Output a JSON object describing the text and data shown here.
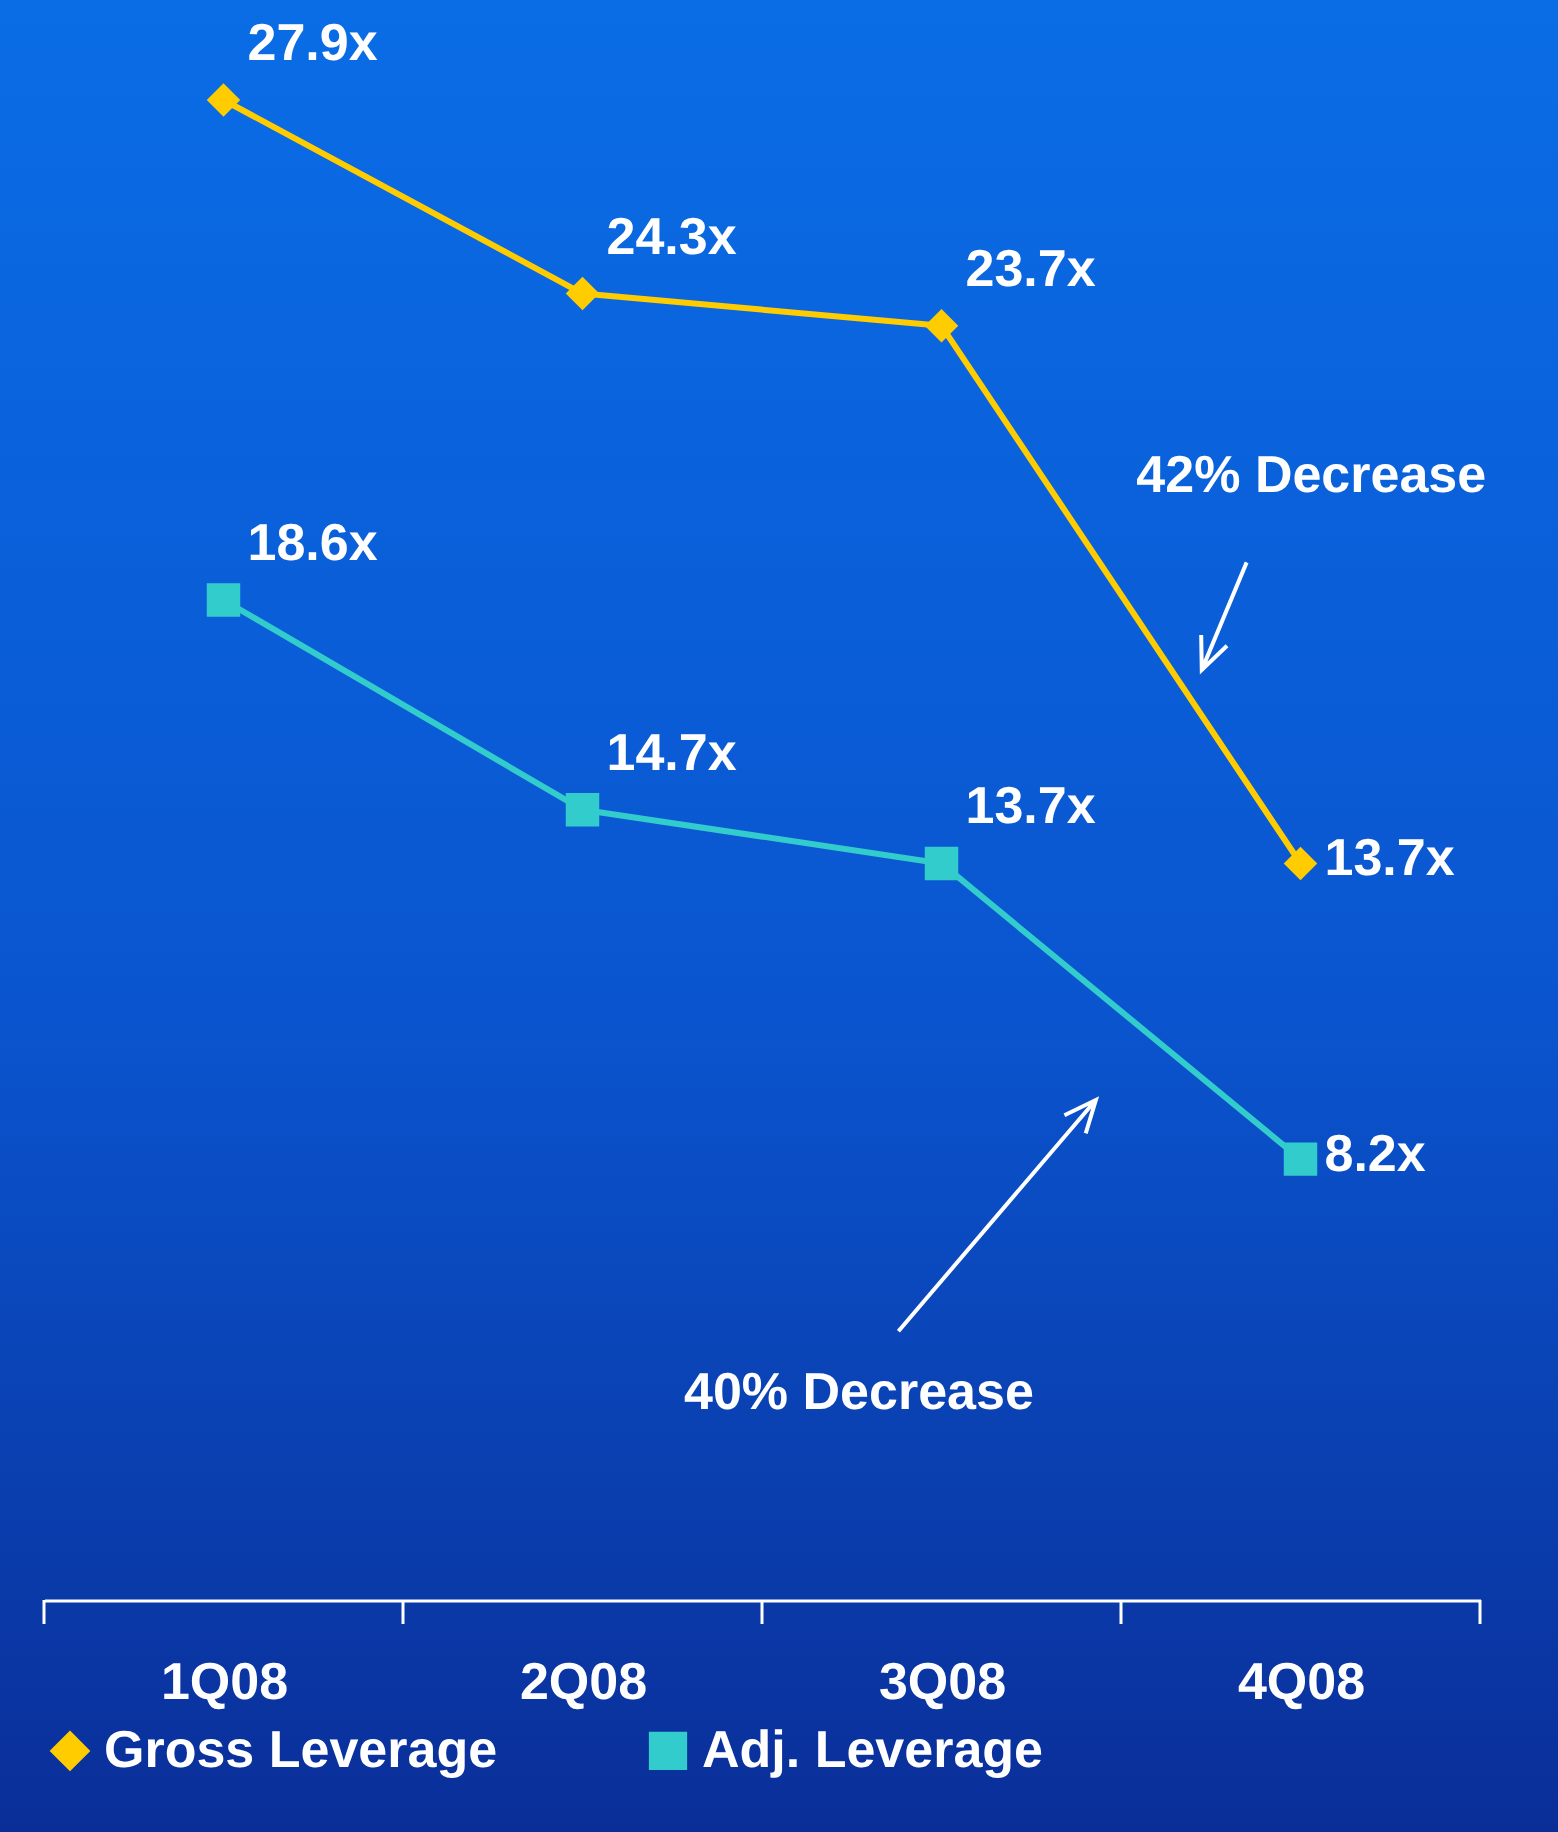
{
  "chart_data": {
    "type": "line",
    "categories": [
      "1Q08",
      "2Q08",
      "3Q08",
      "4Q08"
    ],
    "tick_labels": "x",
    "legend": "bottom",
    "line_style": "solid",
    "series": [
      {
        "name": "Gross Leverage",
        "color": "#ffcc00",
        "marker": "diamond",
        "values": [
          27.9,
          24.3,
          23.7,
          13.7
        ],
        "value_labels": [
          "27.9x",
          "24.3x",
          "23.7x",
          "13.7x"
        ]
      },
      {
        "name": "Adj. Leverage",
        "color": "#33cccc",
        "marker": "square",
        "values": [
          18.6,
          14.7,
          13.7,
          8.2
        ],
        "value_labels": [
          "18.6x",
          "14.7x",
          "13.7x",
          "8.2x"
        ]
      }
    ],
    "annotations": [
      "42% Decrease",
      "40% Decrease"
    ]
  }
}
